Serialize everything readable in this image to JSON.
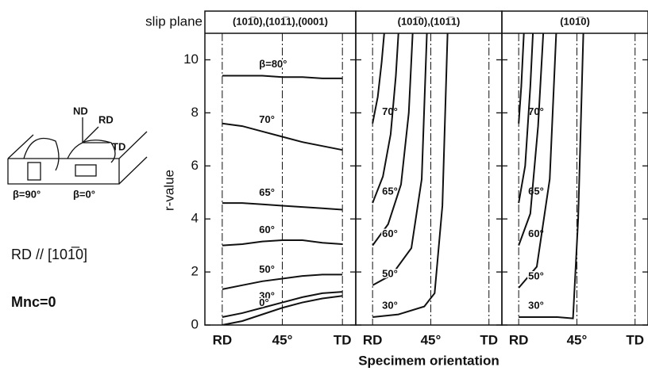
{
  "chart_data": {
    "type": "line",
    "slip_plane_label": "slip plane",
    "y_label": "r-value",
    "x_label": "Specimem orientation",
    "color": "#111111",
    "ylim": [
      0,
      11
    ],
    "yticks": [
      0,
      2,
      4,
      6,
      8,
      10
    ],
    "xlim": [
      -13,
      100
    ],
    "xticks": [
      {
        "value": 0,
        "label": "RD"
      },
      {
        "value": 45,
        "label": "45°"
      },
      {
        "value": 90,
        "label": "TD"
      }
    ],
    "diagram": {
      "axes": [
        "ND",
        "RD",
        "TD"
      ],
      "beta_labels": [
        "β=90°",
        "β=0°"
      ]
    },
    "notes": [
      "RD // [101̅0]",
      "Mnc=0"
    ],
    "panels": [
      {
        "slip_plane": "(101̅0),(101̅1),(0001)",
        "series": [
          {
            "name": "β=80°",
            "x": [
              0,
              15,
              30,
              45,
              60,
              75,
              90
            ],
            "values": [
              9.4,
              9.4,
              9.4,
              9.35,
              9.35,
              9.3,
              9.3
            ]
          },
          {
            "name": "70°",
            "x": [
              0,
              15,
              30,
              45,
              60,
              75,
              90
            ],
            "values": [
              7.6,
              7.5,
              7.3,
              7.1,
              6.9,
              6.75,
              6.6
            ]
          },
          {
            "name": "65°",
            "x": [
              0,
              15,
              30,
              45,
              60,
              75,
              90
            ],
            "values": [
              4.6,
              4.6,
              4.55,
              4.5,
              4.45,
              4.4,
              4.35
            ]
          },
          {
            "name": "60°",
            "x": [
              0,
              15,
              30,
              45,
              60,
              75,
              90
            ],
            "values": [
              3.0,
              3.05,
              3.15,
              3.2,
              3.2,
              3.1,
              3.05
            ]
          },
          {
            "name": "50°",
            "x": [
              0,
              15,
              30,
              45,
              60,
              75,
              90
            ],
            "values": [
              1.35,
              1.5,
              1.65,
              1.75,
              1.85,
              1.9,
              1.9
            ]
          },
          {
            "name": "30°",
            "x": [
              0,
              15,
              30,
              45,
              60,
              75,
              90
            ],
            "values": [
              0.3,
              0.45,
              0.65,
              0.85,
              1.05,
              1.2,
              1.25
            ]
          },
          {
            "name": "0°",
            "x": [
              0,
              15,
              30,
              45,
              60,
              75,
              90
            ],
            "values": [
              0.0,
              0.15,
              0.4,
              0.65,
              0.85,
              1.0,
              1.1
            ]
          }
        ]
      },
      {
        "slip_plane": "(101̅0),(101̅1)",
        "series": [
          {
            "name": "70°",
            "x": [
              0,
              4,
              7,
              9
            ],
            "values": [
              7.6,
              8.6,
              9.9,
              11
            ]
          },
          {
            "name": "65°",
            "x": [
              0,
              8,
              14,
              18,
              20
            ],
            "values": [
              4.6,
              5.6,
              7.2,
              9.4,
              11
            ]
          },
          {
            "name": "60°",
            "x": [
              0,
              12,
              22,
              28,
              31
            ],
            "values": [
              3.0,
              3.8,
              5.3,
              8.0,
              11
            ]
          },
          {
            "name": "50°",
            "x": [
              0,
              15,
              30,
              38,
              42
            ],
            "values": [
              1.5,
              1.9,
              2.9,
              5.5,
              11
            ]
          },
          {
            "name": "30°",
            "x": [
              0,
              20,
              40,
              48,
              54,
              58
            ],
            "values": [
              0.3,
              0.4,
              0.7,
              1.2,
              4.5,
              11
            ]
          }
        ]
      },
      {
        "slip_plane": "(101̅0)",
        "series": [
          {
            "name": "70°",
            "x": [
              0,
              2,
              4
            ],
            "values": [
              7.6,
              9,
              11
            ]
          },
          {
            "name": "65°",
            "x": [
              0,
              5,
              9,
              11
            ],
            "values": [
              4.6,
              6,
              9,
              11
            ]
          },
          {
            "name": "60°",
            "x": [
              0,
              9,
              15,
              19
            ],
            "values": [
              3.0,
              4.2,
              7.5,
              11
            ]
          },
          {
            "name": "50°",
            "x": [
              0,
              14,
              24,
              29
            ],
            "values": [
              1.4,
              2.2,
              5.5,
              11
            ]
          },
          {
            "name": "30°",
            "x": [
              0,
              30,
              42,
              46,
              50
            ],
            "values": [
              0.3,
              0.3,
              0.25,
              4,
              11
            ]
          }
        ]
      }
    ]
  }
}
